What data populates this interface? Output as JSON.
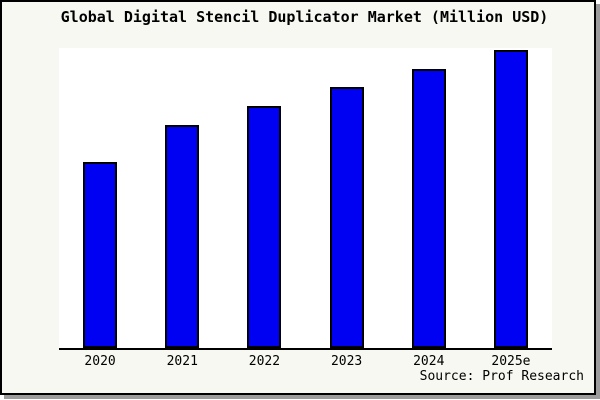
{
  "chart_data": {
    "type": "bar",
    "title": "Global Digital Stencil Duplicator Market (Million USD)",
    "categories": [
      "2020",
      "2021",
      "2022",
      "2023",
      "2024",
      "2025e"
    ],
    "values": [
      62.6,
      75.0,
      81.3,
      87.6,
      93.7,
      100.0
    ],
    "xlabel": "",
    "ylabel": "",
    "ylim": [
      0,
      100.7
    ],
    "y_axis_labels_shown": false,
    "grid": false,
    "legend": "none",
    "bar_color": "#0000f2",
    "bar_border_color": "#000000",
    "axis_color": "#000000",
    "plot_background": "#ffffff",
    "background_color": "#f8f8f2"
  },
  "footer": {
    "source": "Source: Prof Research"
  }
}
